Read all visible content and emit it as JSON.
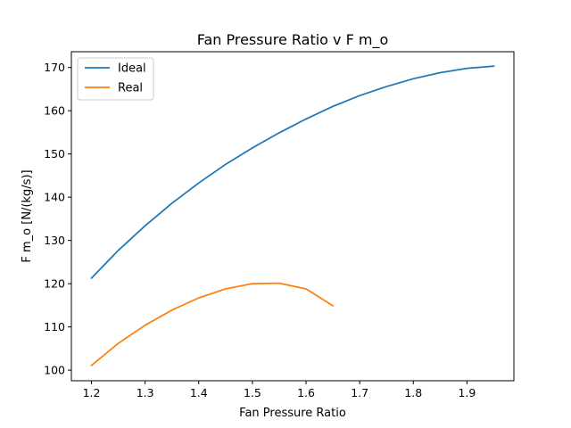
{
  "chart_data": {
    "type": "line",
    "title": "Fan Pressure Ratio v F m_o",
    "xlabel": "Fan Pressure Ratio",
    "ylabel": "F m_o [N/(kg/s)]",
    "xlim": [
      1.1625,
      1.9875
    ],
    "ylim": [
      97.55,
      173.65
    ],
    "xticks": [
      1.2,
      1.3,
      1.4,
      1.5,
      1.6,
      1.7,
      1.8,
      1.9
    ],
    "yticks": [
      100,
      110,
      120,
      130,
      140,
      150,
      160,
      170
    ],
    "grid": false,
    "legend_position": "top-left",
    "series": [
      {
        "name": "Ideal",
        "color": "#1f77b4",
        "x": [
          1.2,
          1.25,
          1.3,
          1.35,
          1.4,
          1.45,
          1.5,
          1.55,
          1.6,
          1.65,
          1.7,
          1.75,
          1.8,
          1.85,
          1.9,
          1.95
        ],
        "y": [
          121.3,
          127.7,
          133.4,
          138.6,
          143.3,
          147.6,
          151.4,
          154.9,
          158.1,
          161.0,
          163.5,
          165.6,
          167.4,
          168.8,
          169.8,
          170.3
        ]
      },
      {
        "name": "Real",
        "color": "#ff7f0e",
        "x": [
          1.2,
          1.25,
          1.3,
          1.35,
          1.4,
          1.45,
          1.5,
          1.55,
          1.6,
          1.65
        ],
        "y": [
          101.1,
          106.2,
          110.4,
          113.9,
          116.7,
          118.8,
          120.0,
          120.1,
          118.8,
          114.9
        ]
      }
    ]
  }
}
